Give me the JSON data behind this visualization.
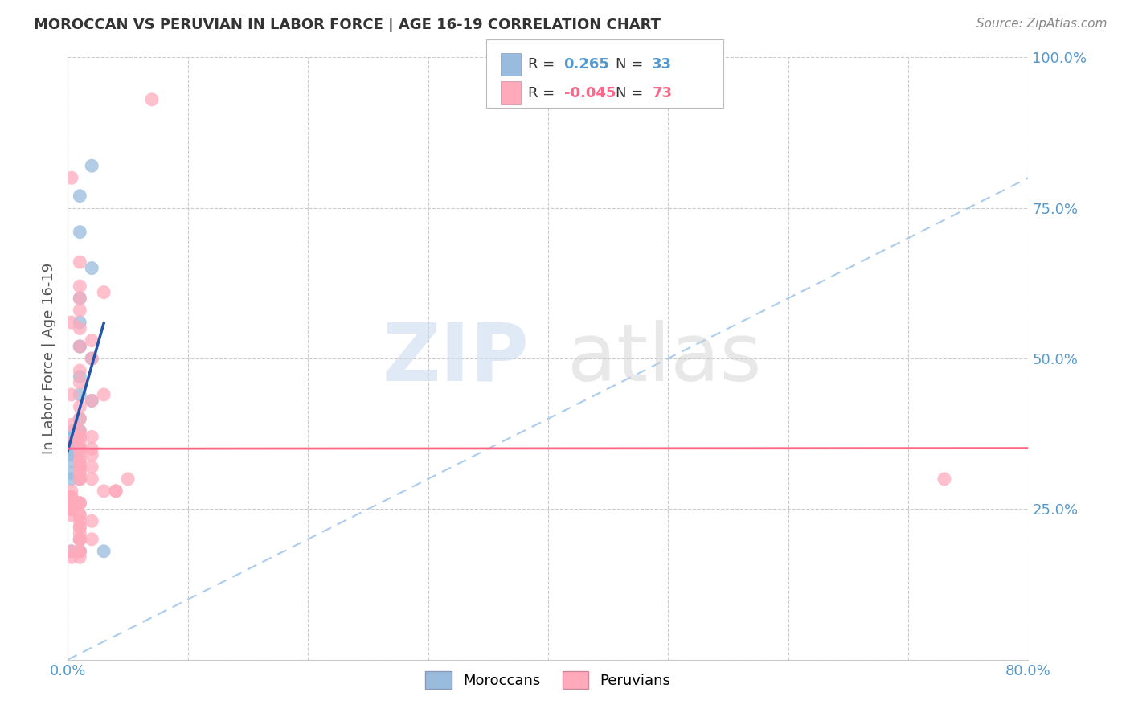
{
  "title": "MOROCCAN VS PERUVIAN IN LABOR FORCE | AGE 16-19 CORRELATION CHART",
  "source": "Source: ZipAtlas.com",
  "ylabel": "In Labor Force | Age 16-19",
  "xlim": [
    0.0,
    0.8
  ],
  "ylim": [
    0.0,
    1.0
  ],
  "moroccan_color": "#99BBDD",
  "peruvian_color": "#FFAABB",
  "moroccan_line_color": "#2255AA",
  "peruvian_line_color": "#FF6688",
  "diagonal_color": "#AACCEE",
  "legend_moroccan_r": "0.265",
  "legend_moroccan_n": "33",
  "legend_peruvian_r": "-0.045",
  "legend_peruvian_n": "73",
  "tick_color": "#5599CC",
  "moroccan_x": [
    0.02,
    0.01,
    0.01,
    0.02,
    0.01,
    0.01,
    0.01,
    0.01,
    0.02,
    0.01,
    0.01,
    0.02,
    0.01,
    0.01,
    0.005,
    0.005,
    0.005,
    0.003,
    0.003,
    0.003,
    0.01,
    0.01,
    0.003,
    0.003,
    0.003,
    0.01,
    0.003,
    0.01,
    0.003,
    0.01,
    0.01,
    0.003,
    0.03
  ],
  "moroccan_y": [
    0.82,
    0.77,
    0.71,
    0.65,
    0.6,
    0.56,
    0.52,
    0.52,
    0.5,
    0.47,
    0.44,
    0.43,
    0.4,
    0.38,
    0.38,
    0.37,
    0.37,
    0.36,
    0.36,
    0.36,
    0.35,
    0.35,
    0.35,
    0.34,
    0.33,
    0.32,
    0.31,
    0.3,
    0.3,
    0.2,
    0.18,
    0.18,
    0.18
  ],
  "peruvian_x": [
    0.07,
    0.003,
    0.01,
    0.01,
    0.03,
    0.01,
    0.01,
    0.003,
    0.01,
    0.02,
    0.01,
    0.02,
    0.01,
    0.01,
    0.003,
    0.03,
    0.02,
    0.01,
    0.01,
    0.003,
    0.01,
    0.02,
    0.01,
    0.01,
    0.003,
    0.01,
    0.02,
    0.01,
    0.01,
    0.01,
    0.02,
    0.01,
    0.01,
    0.01,
    0.02,
    0.01,
    0.01,
    0.01,
    0.02,
    0.01,
    0.01,
    0.05,
    0.04,
    0.04,
    0.03,
    0.003,
    0.003,
    0.003,
    0.003,
    0.01,
    0.01,
    0.01,
    0.003,
    0.003,
    0.003,
    0.003,
    0.01,
    0.01,
    0.02,
    0.01,
    0.01,
    0.01,
    0.01,
    0.01,
    0.01,
    0.02,
    0.01,
    0.01,
    0.003,
    0.01,
    0.73,
    0.01,
    0.003
  ],
  "peruvian_y": [
    0.93,
    0.8,
    0.66,
    0.62,
    0.61,
    0.6,
    0.58,
    0.56,
    0.55,
    0.53,
    0.52,
    0.5,
    0.48,
    0.46,
    0.44,
    0.44,
    0.43,
    0.42,
    0.4,
    0.39,
    0.38,
    0.37,
    0.37,
    0.37,
    0.36,
    0.36,
    0.35,
    0.35,
    0.35,
    0.34,
    0.34,
    0.33,
    0.33,
    0.32,
    0.32,
    0.32,
    0.31,
    0.31,
    0.3,
    0.3,
    0.3,
    0.3,
    0.28,
    0.28,
    0.28,
    0.28,
    0.27,
    0.27,
    0.27,
    0.26,
    0.26,
    0.26,
    0.25,
    0.25,
    0.25,
    0.24,
    0.24,
    0.24,
    0.23,
    0.23,
    0.22,
    0.22,
    0.21,
    0.2,
    0.2,
    0.2,
    0.2,
    0.18,
    0.18,
    0.17,
    0.3,
    0.18,
    0.17
  ]
}
